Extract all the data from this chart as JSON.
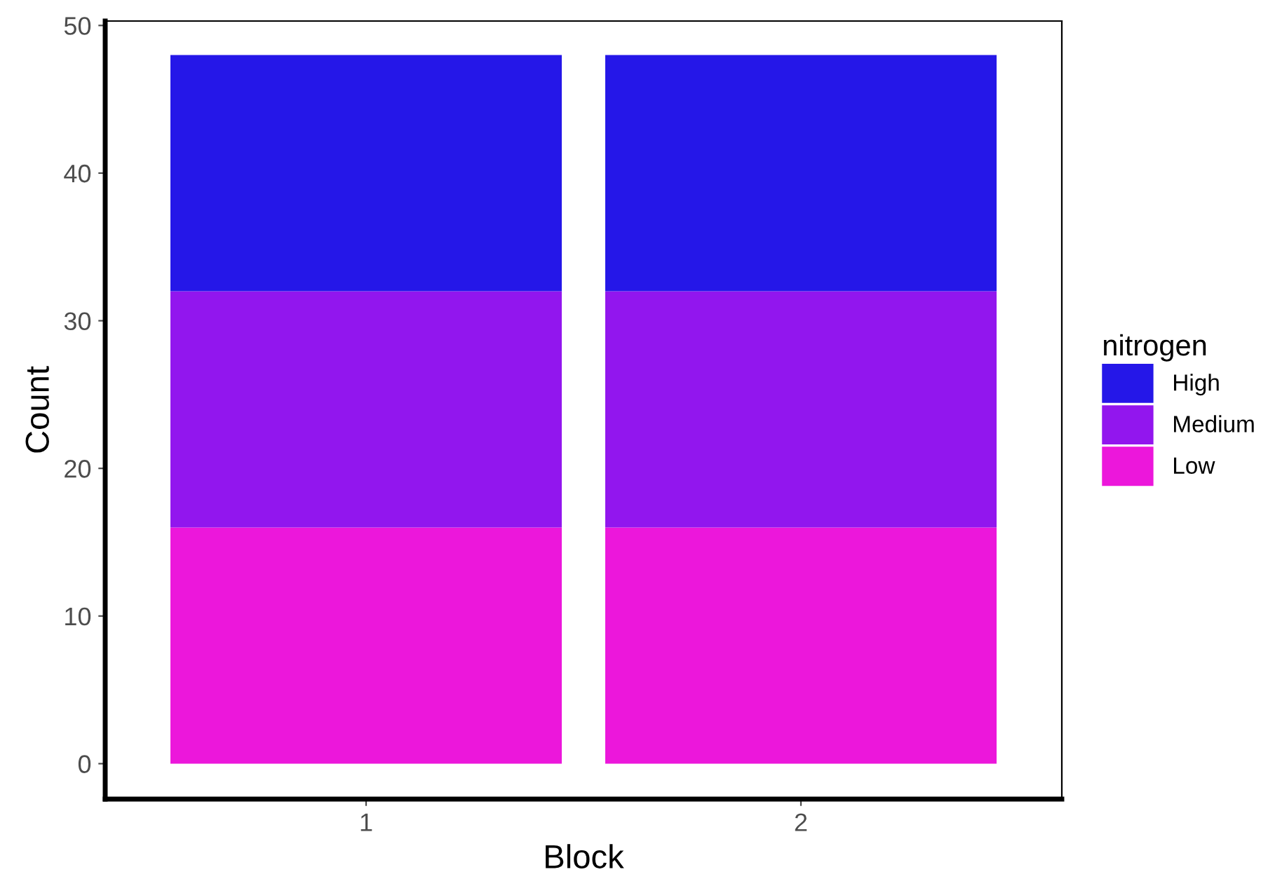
{
  "chart_data": {
    "type": "bar",
    "xlabel": "Block",
    "ylabel": "Count",
    "legend_title": "nitrogen",
    "categories": [
      "1",
      "2"
    ],
    "stacked": true,
    "series": [
      {
        "name": "Low",
        "color": "#ec17db",
        "values": [
          16,
          16
        ]
      },
      {
        "name": "Medium",
        "color": "#9216ee",
        "values": [
          16,
          16
        ]
      },
      {
        "name": "High",
        "color": "#2517e8",
        "values": [
          16,
          16
        ]
      }
    ],
    "ylim": [
      -2.4,
      50.3
    ],
    "yticks": [
      0,
      10,
      20,
      30,
      40,
      50
    ],
    "grid": false,
    "legend": "right"
  }
}
